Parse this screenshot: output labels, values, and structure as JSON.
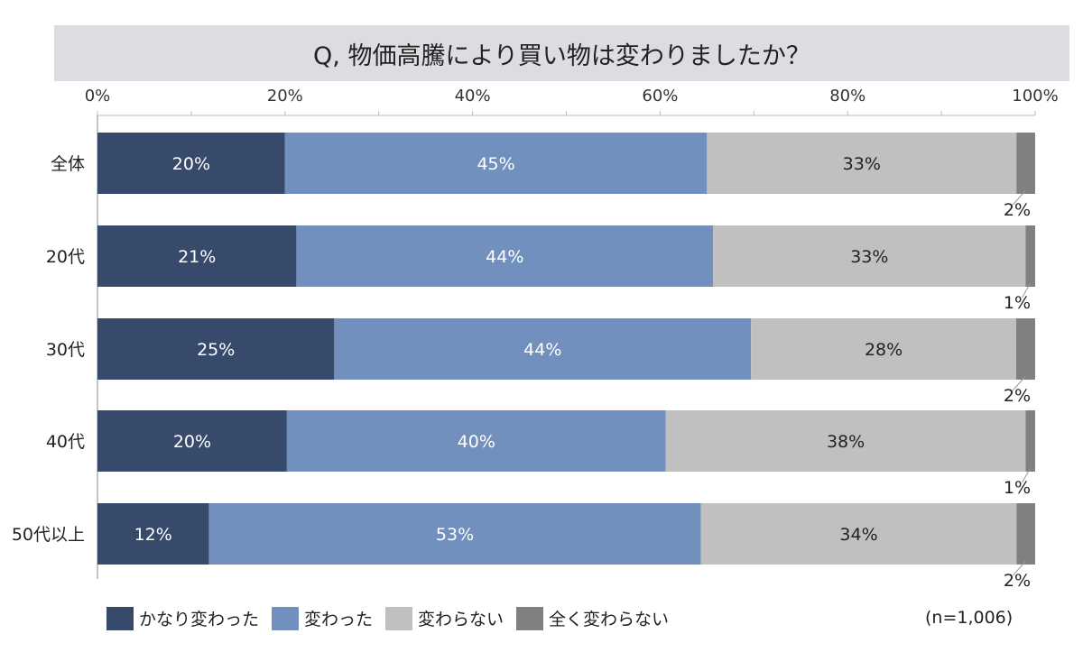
{
  "chart_data": {
    "type": "bar",
    "orientation": "horizontal-stacked-100",
    "title": "Q, 物価高騰により買い物は変わりましたか？",
    "categories": [
      "全体",
      "20代",
      "30代",
      "40代",
      "50代以上"
    ],
    "series": [
      {
        "name": "かなり変わった",
        "color": "#374a6b",
        "label_color": "#ffffff",
        "values": [
          20,
          21,
          25,
          20,
          12
        ]
      },
      {
        "name": "変わった",
        "color": "#7190bd",
        "label_color": "#ffffff",
        "values": [
          45,
          44,
          44,
          40,
          53
        ]
      },
      {
        "name": "変わらない",
        "color": "#c0c0c0",
        "label_color": "#222222",
        "values": [
          33,
          33,
          28,
          38,
          34
        ]
      },
      {
        "name": "全く変わらない",
        "color": "#808080",
        "label_color": "#222222",
        "values": [
          2,
          1,
          2,
          1,
          2
        ]
      }
    ],
    "xticks": [
      "0%",
      "20%",
      "40%",
      "60%",
      "80%",
      "100%"
    ],
    "xlim": [
      0,
      100
    ],
    "legend_position": "bottom",
    "note": "(n=1,006)"
  }
}
